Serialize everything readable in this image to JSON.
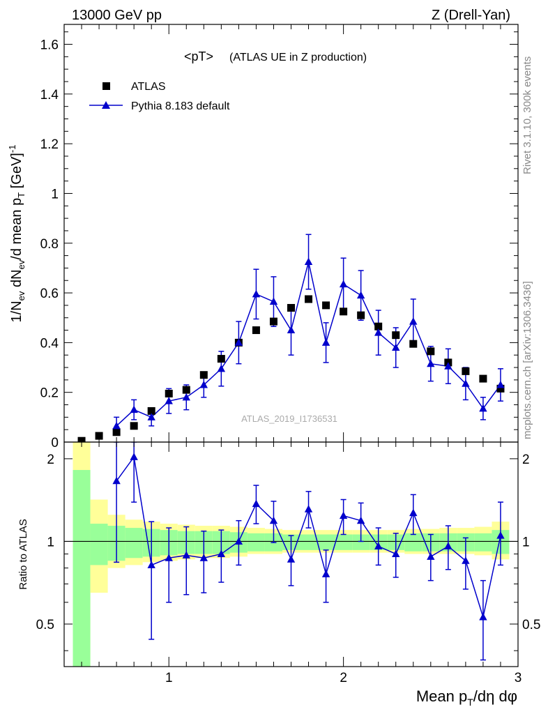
{
  "header": {
    "left": "13000 GeV pp",
    "right": "Z (Drell-Yan)"
  },
  "side": {
    "top": "Rivet 3.1.10,  300k events",
    "bottom": "mcplots.cern.ch [arXiv:1306.3436]"
  },
  "colors": {
    "mc": "#0000cc",
    "data": "#000000",
    "band_inner": "#99ff99",
    "band_outer": "#ffff99"
  },
  "chart_data": [
    {
      "type": "scatter",
      "title": "<pT>",
      "subtitle": "(ATLAS UE in Z production)",
      "watermark": "ATLAS_2019_I1736531",
      "ylabel": "1/N_ev dN_ev/d mean p_T [GeV]^-1",
      "xlim": [
        0.4,
        3.0
      ],
      "ylim": [
        0,
        1.68
      ],
      "yticks": [
        0,
        0.2,
        0.4,
        0.6,
        0.8,
        1,
        1.2,
        1.4,
        1.6
      ],
      "ytick_labels": [
        "0",
        "0.2",
        "0.4",
        "0.6",
        "0.8",
        "1",
        "1.2",
        "1.4",
        "1.6"
      ],
      "legend": {
        "data_label": "ATLAS",
        "mc_label": "Pythia 8.183 default",
        "position": "top-left"
      },
      "series": [
        {
          "name": "ATLAS",
          "marker": "square",
          "x": [
            0.5,
            0.6,
            0.7,
            0.8,
            0.9,
            1.0,
            1.1,
            1.2,
            1.3,
            1.4,
            1.5,
            1.6,
            1.7,
            1.8,
            1.9,
            2.0,
            2.1,
            2.2,
            2.3,
            2.4,
            2.5,
            2.6,
            2.7,
            2.8,
            2.9
          ],
          "y": [
            0.005,
            0.025,
            0.04,
            0.065,
            0.125,
            0.195,
            0.21,
            0.27,
            0.335,
            0.4,
            0.45,
            0.485,
            0.54,
            0.575,
            0.55,
            0.525,
            0.51,
            0.465,
            0.43,
            0.395,
            0.365,
            0.32,
            0.285,
            0.255,
            0.215
          ]
        },
        {
          "name": "Pythia 8.183 default",
          "marker": "triangle",
          "x": [
            0.7,
            0.8,
            0.9,
            1.0,
            1.1,
            1.2,
            1.3,
            1.4,
            1.5,
            1.6,
            1.7,
            1.8,
            1.9,
            2.0,
            2.1,
            2.2,
            2.3,
            2.4,
            2.5,
            2.6,
            2.7,
            2.8,
            2.9
          ],
          "y": [
            0.065,
            0.13,
            0.1,
            0.165,
            0.18,
            0.23,
            0.295,
            0.4,
            0.595,
            0.565,
            0.45,
            0.725,
            0.4,
            0.635,
            0.59,
            0.44,
            0.38,
            0.485,
            0.315,
            0.305,
            0.235,
            0.135,
            0.23
          ],
          "yerr": [
            0.035,
            0.04,
            0.035,
            0.05,
            0.05,
            0.05,
            0.07,
            0.085,
            0.1,
            0.1,
            0.1,
            0.11,
            0.08,
            0.105,
            0.1,
            0.09,
            0.08,
            0.09,
            0.07,
            0.07,
            0.065,
            0.045,
            0.065
          ]
        }
      ]
    },
    {
      "type": "scatter",
      "ylabel": "Ratio to ATLAS",
      "xlabel": "Mean p_T/dη dφ",
      "xlim": [
        0.4,
        3.0
      ],
      "ylim": [
        0.35,
        2.3
      ],
      "yticks": [
        0.5,
        1,
        2
      ],
      "ytick_labels": [
        "0.5",
        "1",
        "2"
      ],
      "xticks": [
        1,
        2,
        3
      ],
      "xtick_labels": [
        "1",
        "2",
        "3"
      ],
      "bands": {
        "edges": [
          0.45,
          0.55,
          0.65,
          0.75,
          0.85,
          0.95,
          1.05,
          1.15,
          1.25,
          1.35,
          1.45,
          1.55,
          1.65,
          1.75,
          1.85,
          1.95,
          2.05,
          2.15,
          2.25,
          2.35,
          2.45,
          2.55,
          2.65,
          2.75,
          2.85,
          2.95
        ],
        "inner_lo": [
          0.35,
          0.82,
          0.85,
          0.87,
          0.88,
          0.89,
          0.9,
          0.9,
          0.9,
          0.91,
          0.92,
          0.92,
          0.93,
          0.93,
          0.93,
          0.93,
          0.93,
          0.93,
          0.93,
          0.92,
          0.92,
          0.92,
          0.92,
          0.92,
          0.9
        ],
        "inner_hi": [
          1.82,
          1.16,
          1.14,
          1.12,
          1.11,
          1.1,
          1.09,
          1.09,
          1.09,
          1.08,
          1.07,
          1.07,
          1.06,
          1.06,
          1.06,
          1.06,
          1.06,
          1.06,
          1.06,
          1.07,
          1.07,
          1.07,
          1.07,
          1.07,
          1.1
        ],
        "outer_lo": [
          0.35,
          0.65,
          0.8,
          0.82,
          0.84,
          0.85,
          0.86,
          0.87,
          0.87,
          0.88,
          0.9,
          0.9,
          0.91,
          0.91,
          0.91,
          0.91,
          0.91,
          0.91,
          0.91,
          0.9,
          0.9,
          0.9,
          0.9,
          0.89,
          0.86
        ],
        "outer_hi": [
          2.3,
          1.42,
          1.25,
          1.2,
          1.18,
          1.16,
          1.15,
          1.14,
          1.14,
          1.13,
          1.12,
          1.11,
          1.1,
          1.1,
          1.1,
          1.1,
          1.1,
          1.1,
          1.1,
          1.11,
          1.11,
          1.12,
          1.12,
          1.13,
          1.18
        ]
      },
      "series": [
        {
          "name": "Pythia 8.183 default / ATLAS",
          "marker": "triangle",
          "x": [
            0.7,
            0.8,
            0.9,
            1.0,
            1.1,
            1.2,
            1.3,
            1.4,
            1.5,
            1.6,
            1.7,
            1.8,
            1.9,
            2.0,
            2.1,
            2.2,
            2.3,
            2.4,
            2.5,
            2.6,
            2.7,
            2.8,
            2.9
          ],
          "y": [
            1.66,
            2.03,
            0.82,
            0.87,
            0.89,
            0.87,
            0.9,
            1.0,
            1.37,
            1.19,
            0.86,
            1.31,
            0.76,
            1.24,
            1.19,
            0.96,
            0.9,
            1.27,
            0.88,
            0.96,
            0.85,
            0.53,
            1.05
          ],
          "ylo": [
            0.84,
            1.39,
            0.44,
            0.6,
            0.64,
            0.65,
            0.71,
            0.82,
            1.16,
            0.99,
            0.69,
            1.12,
            0.6,
            1.06,
            1.0,
            0.82,
            0.74,
            1.06,
            0.72,
            0.79,
            0.67,
            0.37,
            0.82
          ],
          "yhi": [
            2.3,
            2.3,
            1.18,
            1.12,
            1.13,
            1.09,
            1.1,
            1.19,
            1.6,
            1.4,
            1.05,
            1.52,
            0.93,
            1.42,
            1.38,
            1.12,
            1.07,
            1.48,
            1.06,
            1.14,
            1.03,
            0.72,
            1.39
          ]
        }
      ]
    }
  ]
}
